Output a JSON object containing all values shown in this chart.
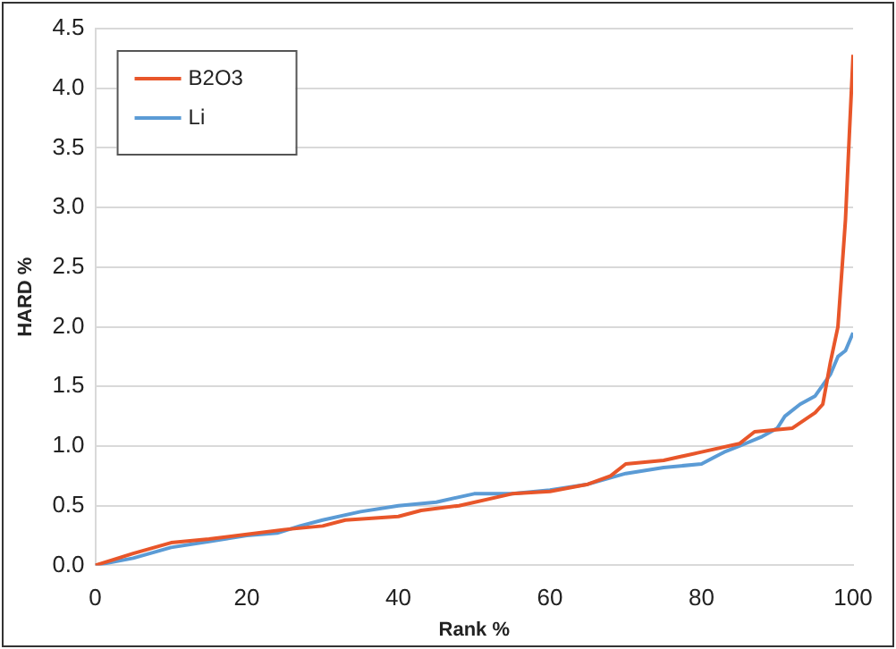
{
  "chart_data": {
    "type": "line",
    "xlabel": "Rank %",
    "ylabel": "HARD %",
    "xlim": [
      0,
      100
    ],
    "xticks": [
      0,
      20,
      40,
      60,
      80,
      100
    ],
    "ylim": [
      0,
      4.5
    ],
    "yticks": [
      {
        "value": 0,
        "label": "0.0"
      },
      0.5,
      {
        "value": 1,
        "label": "1.0"
      },
      1.5,
      {
        "value": 2,
        "label": "2.0"
      },
      2.5,
      {
        "value": 3,
        "label": "3.0"
      },
      3.5,
      {
        "value": 4,
        "label": "4.0"
      },
      4.5
    ],
    "grid": "y",
    "legend": "top left",
    "marker": "none",
    "line_style": "solid",
    "series": [
      {
        "name": "B2O3",
        "color": "#e8562a",
        "x": [
          0,
          5,
          10,
          15,
          20,
          25,
          30,
          33,
          40,
          43,
          48,
          55,
          60,
          65,
          68,
          70,
          75,
          80,
          85,
          87,
          92,
          95,
          96,
          97,
          98,
          99,
          99.5,
          100
        ],
        "values": [
          0,
          0.1,
          0.19,
          0.22,
          0.26,
          0.3,
          0.33,
          0.38,
          0.41,
          0.46,
          0.5,
          0.6,
          0.62,
          0.68,
          0.75,
          0.85,
          0.88,
          0.95,
          1.02,
          1.12,
          1.15,
          1.28,
          1.35,
          1.7,
          2.0,
          2.9,
          3.6,
          4.28
        ]
      },
      {
        "name": "Li",
        "color": "#5b9bd5",
        "x": [
          0,
          5,
          10,
          15,
          20,
          24,
          27,
          30,
          35,
          40,
          45,
          50,
          55,
          60,
          65,
          70,
          75,
          80,
          83,
          85,
          88,
          90,
          91,
          93,
          95,
          97,
          98,
          99,
          100
        ],
        "values": [
          0,
          0.06,
          0.15,
          0.2,
          0.25,
          0.27,
          0.33,
          0.38,
          0.45,
          0.5,
          0.53,
          0.6,
          0.6,
          0.63,
          0.68,
          0.77,
          0.82,
          0.85,
          0.95,
          1.0,
          1.08,
          1.15,
          1.25,
          1.35,
          1.42,
          1.6,
          1.75,
          1.8,
          1.95
        ]
      }
    ]
  }
}
